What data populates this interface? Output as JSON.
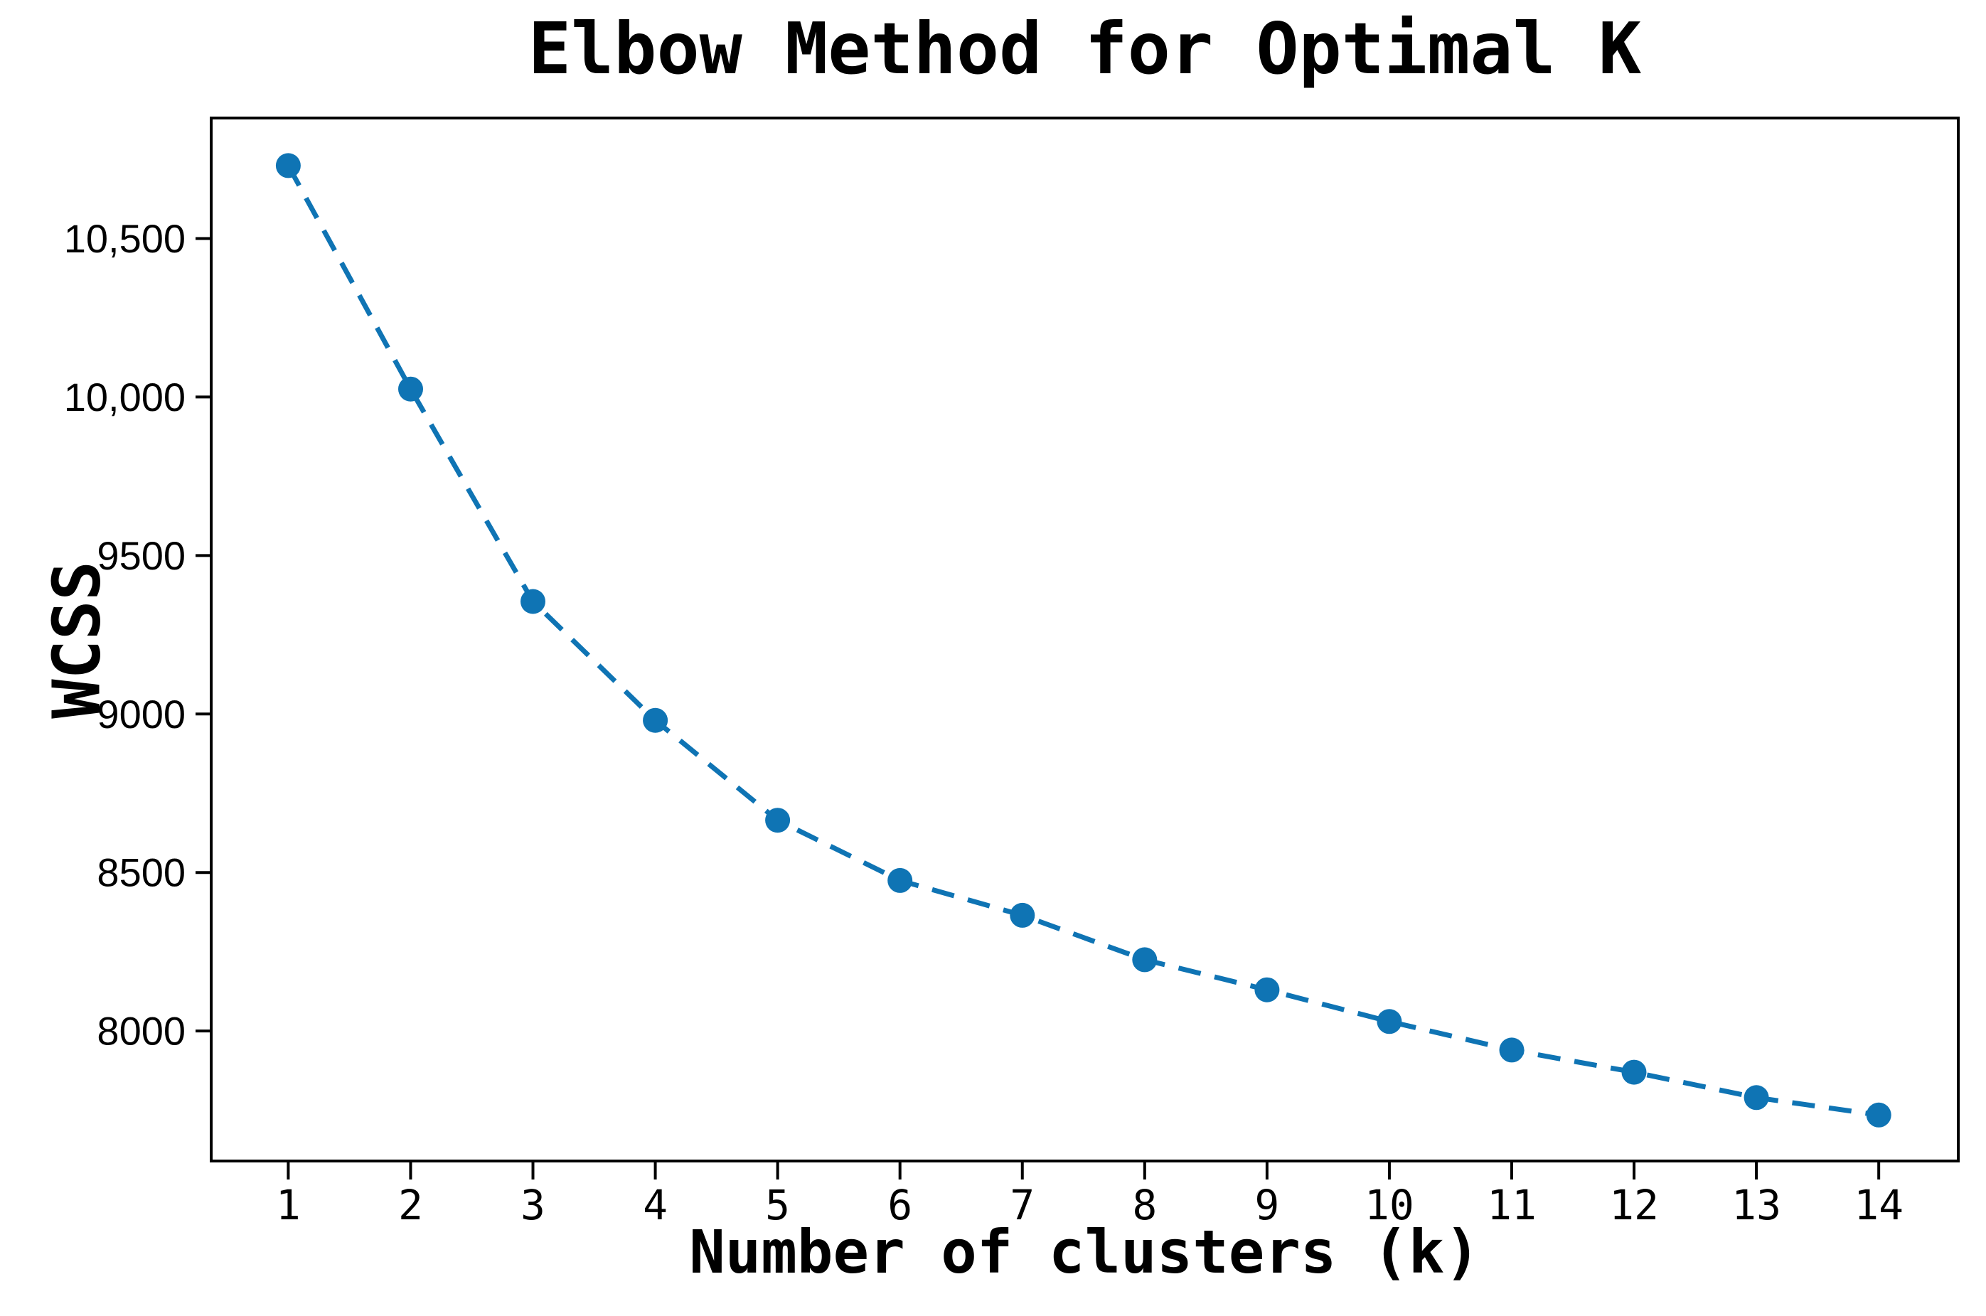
{
  "chart_data": {
    "type": "line",
    "title": "Elbow Method for Optimal K",
    "xlabel": "Number of clusters (k)",
    "ylabel": "WCSS",
    "x": [
      1,
      2,
      3,
      4,
      5,
      6,
      7,
      8,
      9,
      10,
      11,
      12,
      13,
      14
    ],
    "series": [
      {
        "name": "WCSS",
        "values": [
          10730,
          10025,
          9355,
          8980,
          8665,
          8475,
          8365,
          8225,
          8130,
          8030,
          7940,
          7870,
          7790,
          7735
        ]
      }
    ],
    "xtick_labels": [
      "1",
      "2",
      "3",
      "4",
      "5",
      "6",
      "7",
      "8",
      "9",
      "10",
      "11",
      "12",
      "13",
      "14"
    ],
    "ytick_values": [
      10500,
      10000,
      9500,
      9000,
      8500,
      8000
    ],
    "ytick_labels": [
      "10,500",
      "10,000",
      "9500",
      "9000",
      "8500",
      "8000"
    ],
    "xlim": [
      0.37,
      14.65
    ],
    "ylim": [
      7590,
      10880
    ],
    "grid": false,
    "legend": "none",
    "line_style": "dashed",
    "marker": "circle",
    "line_color": "#0f74b4",
    "axis_color": "#000000",
    "background_color": "#ffffff"
  }
}
